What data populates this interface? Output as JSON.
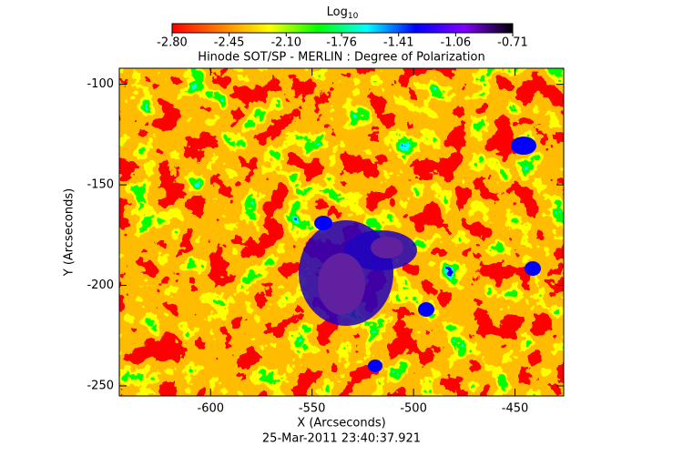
{
  "chart_data": {
    "type": "image",
    "title": "Hinode SOT/SP - MERLIN : Degree of Polarization",
    "x_label": "X (Arcseconds)",
    "y_label": "Y (Arcseconds)",
    "footer": "25-Mar-2011 23:40:37.921",
    "colorbar_label": "Log",
    "colorbar_label_sub": "10",
    "colormap": [
      "#ff0000",
      "#ff8000",
      "#ffff00",
      "#00ff00",
      "#00ffff",
      "#0000ff",
      "#8000ff",
      "#000000"
    ],
    "clim": [
      -2.8,
      -0.71
    ],
    "cticks": [
      {
        "value": -2.8,
        "label": "-2.80"
      },
      {
        "value": -2.45,
        "label": "-2.45"
      },
      {
        "value": -2.1,
        "label": "-2.10"
      },
      {
        "value": -1.76,
        "label": "-1.76"
      },
      {
        "value": -1.41,
        "label": "-1.41"
      },
      {
        "value": -1.06,
        "label": "-1.06"
      },
      {
        "value": -0.71,
        "label": "-0.71"
      }
    ],
    "xlim": [
      -645,
      -426
    ],
    "xticks": [
      -600,
      -550,
      -500,
      -450
    ],
    "ylim": [
      -255,
      -92
    ],
    "yticks": [
      -100,
      -150,
      -200,
      -250
    ]
  }
}
